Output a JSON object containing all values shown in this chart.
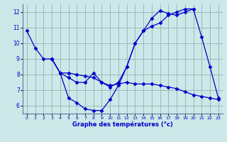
{
  "xlabel": "Graphe des températures (°c)",
  "bg_color": "#cce8e8",
  "line_color": "#0000cc",
  "grid_color": "#99bbbb",
  "line1": {
    "x": [
      0,
      1,
      2,
      3,
      4,
      5,
      6,
      7,
      8,
      9,
      10,
      11,
      12,
      13,
      14,
      15,
      16,
      17,
      18,
      19,
      20,
      21,
      22,
      23
    ],
    "y": [
      10.8,
      9.7,
      9.0,
      9.0,
      8.1,
      8.1,
      8.0,
      7.9,
      7.8,
      7.5,
      7.2,
      7.5,
      8.5,
      10.0,
      10.8,
      11.1,
      11.3,
      11.8,
      12.0,
      12.2,
      12.2,
      10.4,
      8.5,
      6.5
    ]
  },
  "line2": {
    "x": [
      3,
      4,
      5,
      6,
      7,
      8,
      9,
      10,
      11,
      12,
      13,
      14,
      15,
      16,
      17,
      18,
      19,
      20
    ],
    "y": [
      9.0,
      8.1,
      6.5,
      6.2,
      5.8,
      5.7,
      5.7,
      6.4,
      7.3,
      8.5,
      10.0,
      10.8,
      11.6,
      12.1,
      11.9,
      11.8,
      12.0,
      12.2
    ]
  },
  "line3": {
    "x": [
      3,
      4,
      5,
      6,
      7,
      8,
      9,
      10,
      11,
      12,
      13,
      14,
      15,
      16,
      17,
      18,
      19,
      20,
      21,
      22,
      23
    ],
    "y": [
      9.0,
      8.1,
      7.8,
      7.5,
      7.5,
      8.1,
      7.5,
      7.3,
      7.4,
      7.5,
      7.4,
      7.4,
      7.4,
      7.3,
      7.2,
      7.1,
      6.9,
      6.7,
      6.6,
      6.5,
      6.4
    ]
  },
  "xlim": [
    -0.5,
    23.5
  ],
  "ylim": [
    5.5,
    12.5
  ],
  "yticks": [
    6,
    7,
    8,
    9,
    10,
    11,
    12
  ],
  "xticks": [
    0,
    1,
    2,
    3,
    4,
    5,
    6,
    7,
    8,
    9,
    10,
    11,
    12,
    13,
    14,
    15,
    16,
    17,
    18,
    19,
    20,
    21,
    22,
    23
  ]
}
